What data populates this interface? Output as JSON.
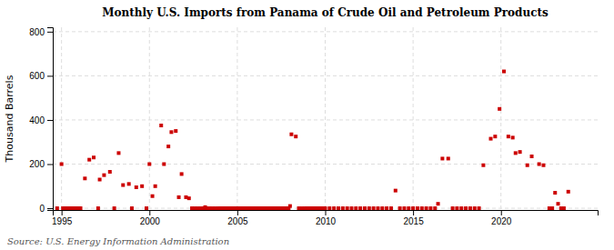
{
  "chart_data": {
    "type": "scatter",
    "title": "Monthly U.S. Imports from Panama of Crude Oil and Petroleum Products",
    "ylabel": "Thousand Barrels",
    "annotations": [
      "Source: U.S. Energy Information Administration"
    ],
    "color": "#cc0000",
    "marker": "square",
    "grid": true,
    "xlim": [
      1994.5,
      2025.5
    ],
    "ylim": [
      -8,
      820
    ],
    "xticks": [
      1995,
      2000,
      2005,
      2010,
      2015,
      2020
    ],
    "yticks": [
      0,
      200,
      400,
      600,
      800
    ],
    "x": [
      1994.75,
      1995.0,
      1995.08,
      1995.17,
      1995.25,
      1995.33,
      1995.42,
      1995.5,
      1995.58,
      1995.67,
      1995.75,
      1995.83,
      1995.92,
      1996.0,
      1996.08,
      1996.33,
      1996.58,
      1996.83,
      1997.08,
      1997.17,
      1997.42,
      1997.75,
      1998.0,
      1998.25,
      1998.5,
      1998.83,
      1999.0,
      1999.25,
      1999.58,
      1999.83,
      2000.0,
      2000.17,
      2000.33,
      2000.67,
      2000.83,
      2001.08,
      2001.25,
      2001.5,
      2001.67,
      2001.83,
      2002.08,
      2002.25,
      2002.42,
      2002.58,
      2002.75,
      2002.92,
      2003.08,
      2003.17,
      2003.25,
      2003.42,
      2003.58,
      2003.75,
      2003.92,
      2004.0,
      2004.08,
      2004.17,
      2004.25,
      2004.33,
      2004.42,
      2004.5,
      2004.58,
      2004.67,
      2004.75,
      2004.83,
      2004.92,
      2005.0,
      2005.08,
      2005.17,
      2005.25,
      2005.33,
      2005.42,
      2005.5,
      2005.58,
      2005.67,
      2005.75,
      2005.83,
      2005.92,
      2006.0,
      2006.08,
      2006.17,
      2006.25,
      2006.33,
      2006.42,
      2006.5,
      2006.58,
      2006.67,
      2006.75,
      2006.83,
      2006.92,
      2007.0,
      2007.08,
      2007.17,
      2007.25,
      2007.33,
      2007.42,
      2007.5,
      2007.58,
      2007.67,
      2007.75,
      2007.83,
      2007.92,
      2008.0,
      2008.08,
      2008.33,
      2008.5,
      2008.67,
      2008.83,
      2008.92,
      2009.0,
      2009.08,
      2009.17,
      2009.25,
      2009.33,
      2009.42,
      2009.5,
      2009.58,
      2009.67,
      2009.75,
      2009.83,
      2009.92,
      2010.0,
      2010.25,
      2010.5,
      2010.75,
      2011.0,
      2011.25,
      2011.5,
      2011.75,
      2012.0,
      2012.25,
      2012.5,
      2012.75,
      2013.0,
      2013.25,
      2013.5,
      2013.75,
      2014.0,
      2014.25,
      2014.5,
      2014.75,
      2015.0,
      2015.25,
      2015.5,
      2015.75,
      2016.0,
      2016.25,
      2016.42,
      2016.67,
      2017.0,
      2017.25,
      2017.5,
      2017.75,
      2018.0,
      2018.25,
      2018.5,
      2018.75,
      2019.0,
      2019.42,
      2019.67,
      2019.92,
      2020.17,
      2020.42,
      2020.67,
      2020.83,
      2021.08,
      2021.5,
      2021.75,
      2022.17,
      2022.42,
      2022.75,
      2022.92,
      2023.08,
      2023.25,
      2023.42,
      2023.58,
      2023.83
    ],
    "values": [
      0,
      200,
      0,
      0,
      0,
      0,
      0,
      0,
      0,
      0,
      0,
      0,
      0,
      0,
      0,
      135,
      220,
      230,
      0,
      130,
      150,
      165,
      0,
      250,
      105,
      110,
      0,
      95,
      100,
      0,
      200,
      55,
      100,
      375,
      200,
      280,
      345,
      350,
      50,
      155,
      50,
      45,
      0,
      0,
      0,
      0,
      0,
      5,
      0,
      0,
      0,
      0,
      0,
      0,
      0,
      0,
      0,
      0,
      0,
      0,
      0,
      0,
      0,
      0,
      0,
      0,
      0,
      0,
      0,
      0,
      0,
      0,
      0,
      0,
      0,
      0,
      0,
      0,
      0,
      0,
      0,
      0,
      0,
      0,
      0,
      0,
      0,
      0,
      0,
      0,
      0,
      0,
      0,
      0,
      0,
      0,
      0,
      0,
      0,
      0,
      0,
      10,
      335,
      325,
      0,
      0,
      0,
      0,
      0,
      0,
      0,
      0,
      0,
      0,
      0,
      0,
      0,
      0,
      0,
      0,
      0,
      0,
      0,
      0,
      0,
      0,
      0,
      0,
      0,
      0,
      0,
      0,
      0,
      0,
      0,
      0,
      80,
      0,
      0,
      0,
      0,
      0,
      0,
      0,
      0,
      0,
      20,
      225,
      225,
      0,
      0,
      0,
      0,
      0,
      0,
      0,
      195,
      315,
      325,
      450,
      620,
      325,
      320,
      250,
      255,
      195,
      235,
      200,
      195,
      0,
      0,
      70,
      20,
      0,
      0,
      75
    ]
  }
}
